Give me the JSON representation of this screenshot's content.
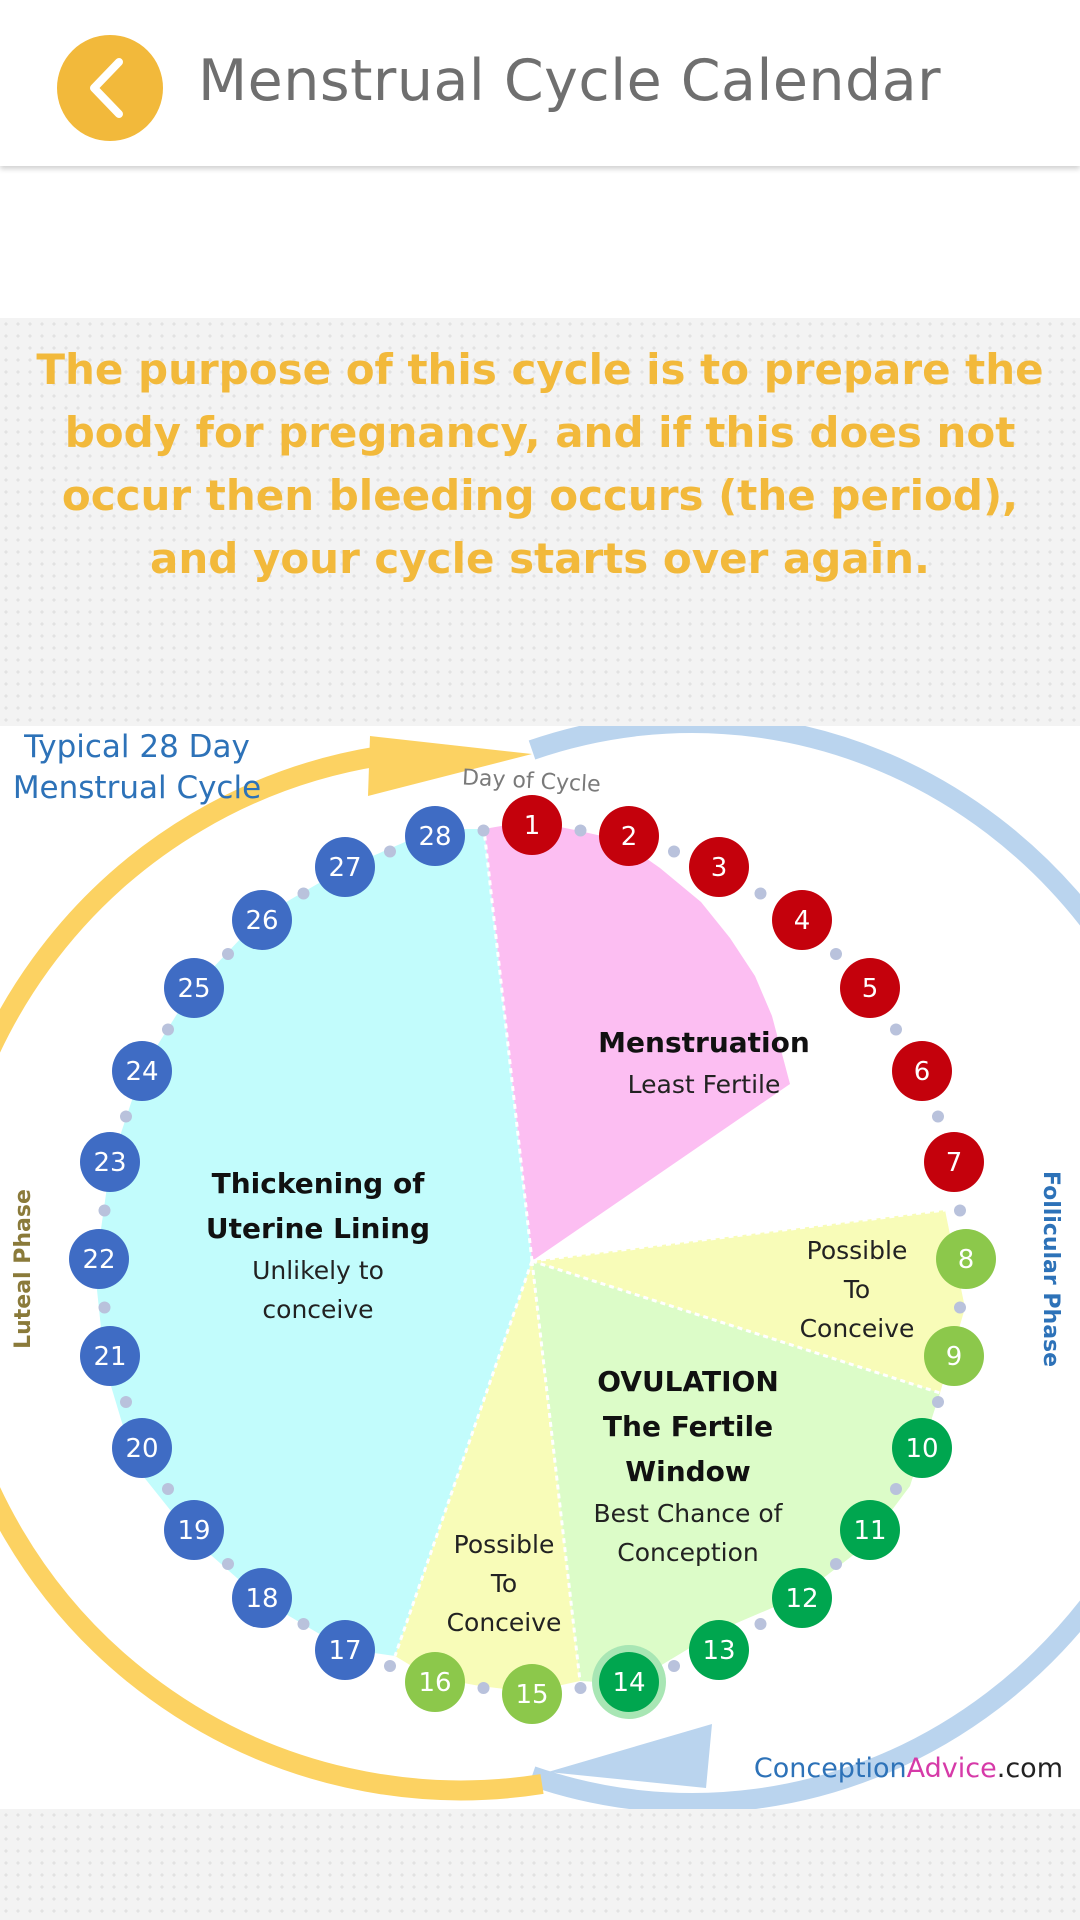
{
  "header": {
    "title": "Menstrual Cycle Calendar",
    "back_icon": "chevron-left-icon"
  },
  "intro": {
    "text": "The purpose of this cycle is to prepare the body for pregnancy, and if this does not occur then bleeding occurs (the period), and your cycle starts over again."
  },
  "diagram": {
    "title_line1": "Typical 28 Day",
    "title_line2": "Menstrual Cycle",
    "day_of_cycle_label": "Day of Cycle",
    "luteal_phase_label": "Luteal Phase",
    "follicular_phase_label": "Follicular Phase",
    "days": [
      "1",
      "2",
      "3",
      "4",
      "5",
      "6",
      "7",
      "8",
      "9",
      "10",
      "11",
      "12",
      "13",
      "14",
      "15",
      "16",
      "17",
      "18",
      "19",
      "20",
      "21",
      "22",
      "23",
      "24",
      "25",
      "26",
      "27",
      "28"
    ],
    "segments": {
      "menstruation": {
        "title": "Menstruation",
        "subtitle": "Least Fertile"
      },
      "possible_upper": {
        "line1": "Possible",
        "line2": "To",
        "line3": "Conceive"
      },
      "ovulation": {
        "line1": "OVULATION",
        "line2": "The Fertile",
        "line3": "Window",
        "line4": "Best Chance of",
        "line5": "Conception"
      },
      "possible_lower": {
        "line1": "Possible",
        "line2": "To",
        "line3": "Conceive"
      },
      "luteal": {
        "line1": "Thickening of",
        "line2": "Uterine Lining",
        "line3": "Unlikely to",
        "line4": "conceive"
      }
    },
    "credit": {
      "part1": "Conception",
      "part2": "Advice",
      "part3": ".com"
    },
    "colors": {
      "menstruation_circle": "#c4010c",
      "fertile_light": "#8cc84b",
      "fertile_dark": "#00a64f",
      "luteal_circle": "#3f6cc4",
      "menstruation_fill": "#fcbef2",
      "possible_fill": "#f8fcb8",
      "ovulation_fill": "#dcfcc8",
      "luteal_fill": "#c2fcfc",
      "luteal_arrow": "#fcd262",
      "follicular_arrow": "#bad4ee"
    }
  }
}
